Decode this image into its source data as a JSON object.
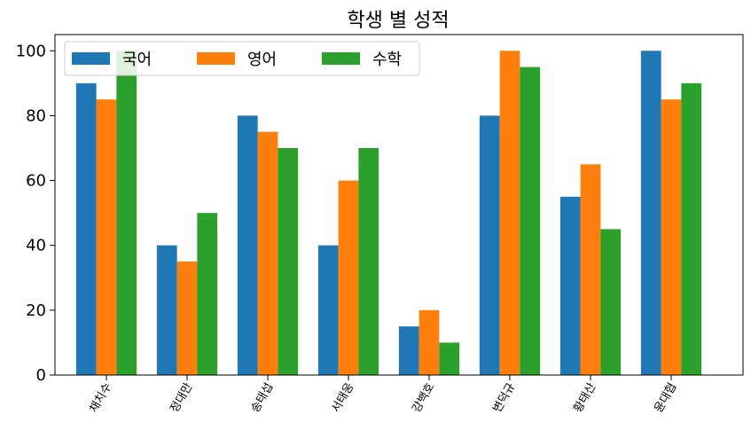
{
  "chart_data": {
    "type": "bar",
    "title": "학생 별 성적",
    "xlabel": "",
    "ylabel": "",
    "categories": [
      "채치수",
      "정대만",
      "송태섭",
      "서태웅",
      "강백호",
      "변덕규",
      "황태산",
      "윤대협"
    ],
    "series": [
      {
        "name": "국어",
        "values": [
          90,
          40,
          80,
          40,
          15,
          80,
          55,
          100
        ],
        "color": "#1f77b4"
      },
      {
        "name": "영어",
        "values": [
          85,
          35,
          75,
          60,
          20,
          100,
          65,
          85
        ],
        "color": "#ff7f0e"
      },
      {
        "name": "수학",
        "values": [
          100,
          50,
          70,
          70,
          10,
          95,
          45,
          90
        ],
        "color": "#2ca02c"
      }
    ],
    "ylim": [
      0,
      105
    ],
    "yticks": [
      0,
      20,
      40,
      60,
      80,
      100
    ],
    "grid": false,
    "legend_placement": "top-left"
  }
}
